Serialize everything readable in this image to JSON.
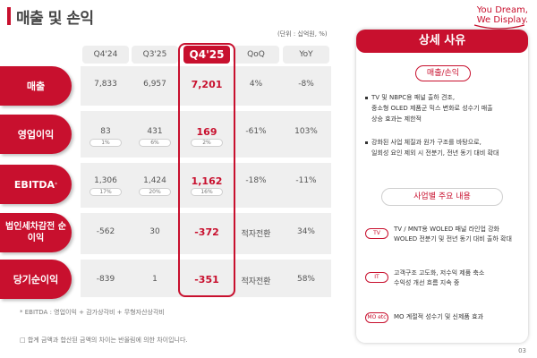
{
  "page": {
    "title": "매출 및 손익",
    "unit_note": "(단위 : 십억원, %)",
    "page_number": "03",
    "brand_color": "#c8102e"
  },
  "logo": {
    "line1": "You Dream,",
    "line2": "We Display."
  },
  "table": {
    "headers": [
      "Q4'24",
      "Q3'25",
      "Q4'25",
      "QoQ",
      "YoY"
    ],
    "rows": [
      {
        "label": "매출",
        "values": [
          "7,833",
          "6,957",
          "7,201",
          "4%",
          "-8%"
        ],
        "subs": [
          "",
          "",
          ""
        ]
      },
      {
        "label": "영업이익",
        "values": [
          "83",
          "431",
          "169",
          "-61%",
          "103%"
        ],
        "subs": [
          "1%",
          "6%",
          "2%"
        ]
      },
      {
        "label": "EBITDA",
        "label_sup": "*",
        "values": [
          "1,306",
          "1,424",
          "1,162",
          "-18%",
          "-11%"
        ],
        "subs": [
          "17%",
          "20%",
          "16%"
        ]
      },
      {
        "label": "법인세차감전 순이익",
        "values": [
          "-562",
          "30",
          "-372",
          "적자전환",
          "34%"
        ],
        "subs": [
          "",
          "",
          ""
        ]
      },
      {
        "label": "당기순이익",
        "values": [
          "-839",
          "1",
          "-351",
          "적자전환",
          "58%"
        ],
        "subs": [
          "",
          "",
          ""
        ]
      }
    ]
  },
  "footnotes": {
    "ebitda": "* EBITDA : 영업이익 + 감가상각비 + 무형자산상각비",
    "rounding": "□ 합계 금액과 합산된 금액의 차이는 반올림에 의한 차이입니다."
  },
  "panel": {
    "title": "상세 사유",
    "section1_label": "매출/손익",
    "section1_bullets": [
      [
        "TV 및 NBPC용 패널 출하 견조,",
        "중소형 OLED 제품군 믹스 변화로 성수기 매출",
        "상승 효과는 제한적"
      ],
      [
        "강화된 사업 체질과 원가 구조를 바탕으로,",
        "일회성 요인 제외 시 전분기, 전년 동기 대비 확대"
      ]
    ],
    "section2_label": "사업별 주요 내용",
    "items": [
      {
        "tag": "TV",
        "lines": [
          "TV / MNT용 WOLED 패널 라인업 강화",
          "WOLED 전분기 및 전년 동기 대비 출하 확대"
        ]
      },
      {
        "tag": "IT",
        "lines": [
          "고객구조 고도화, 저수익 제품 축소",
          "수익성 개선 흐름 지속 중"
        ]
      },
      {
        "tag": "MO etc",
        "lines": [
          "MO 계절적 성수기 및 신제품 효과"
        ]
      }
    ]
  }
}
